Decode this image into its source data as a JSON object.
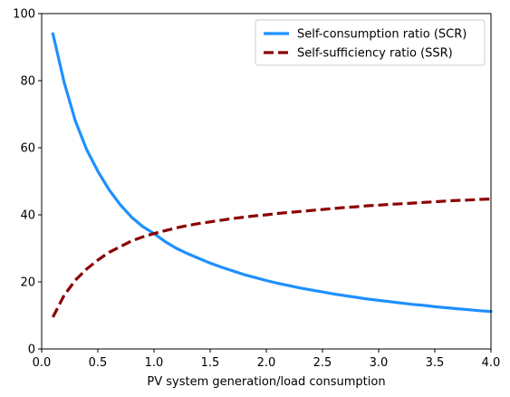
{
  "chart_data": {
    "type": "line",
    "title": "",
    "xlabel": "PV system generation/load consumption",
    "ylabel": "",
    "xlim": [
      0,
      4.0
    ],
    "ylim": [
      0,
      100
    ],
    "x_ticks": [
      "0.0",
      "0.5",
      "1.0",
      "1.5",
      "2.0",
      "2.5",
      "3.0",
      "3.5",
      "4.0"
    ],
    "y_ticks": [
      "0",
      "20",
      "40",
      "60",
      "80",
      "100"
    ],
    "grid": false,
    "legend_position": "top-right",
    "series": [
      {
        "name": "Self-consumption ratio (SCR)",
        "color": "#1E90FF",
        "style": "solid",
        "x": [
          0.1,
          0.2,
          0.3,
          0.4,
          0.5,
          0.6,
          0.7,
          0.8,
          0.9,
          1.0,
          1.1,
          1.2,
          1.3,
          1.4,
          1.5,
          1.6,
          1.7,
          1.8,
          1.9,
          2.0,
          2.1,
          2.2,
          2.3,
          2.4,
          2.5,
          2.6,
          2.7,
          2.8,
          2.9,
          3.0,
          3.1,
          3.2,
          3.3,
          3.4,
          3.5,
          3.6,
          3.7,
          3.8,
          3.9,
          4.0
        ],
        "y": [
          94,
          79.5,
          68,
          59.5,
          53,
          47.5,
          43,
          39.3,
          36.5,
          34.4,
          32,
          30,
          28.4,
          27,
          25.6,
          24.4,
          23.3,
          22.2,
          21.3,
          20.4,
          19.6,
          18.9,
          18.2,
          17.6,
          17.0,
          16.4,
          15.9,
          15.4,
          14.9,
          14.5,
          14.1,
          13.7,
          13.3,
          13.0,
          12.6,
          12.3,
          12.0,
          11.7,
          11.4,
          11.2
        ]
      },
      {
        "name": "Self-sufficiency ratio (SSR)",
        "color": "#8B0000",
        "style": "dashed",
        "x": [
          0.1,
          0.2,
          0.3,
          0.4,
          0.5,
          0.6,
          0.7,
          0.8,
          0.9,
          1.0,
          1.1,
          1.2,
          1.3,
          1.4,
          1.5,
          1.6,
          1.7,
          1.8,
          1.9,
          2.0,
          2.1,
          2.2,
          2.3,
          2.4,
          2.5,
          2.6,
          2.7,
          2.8,
          2.9,
          3.0,
          3.1,
          3.2,
          3.3,
          3.4,
          3.5,
          3.6,
          3.7,
          3.8,
          3.9,
          4.0
        ],
        "y": [
          9.5,
          16,
          20.5,
          23.8,
          26.5,
          28.8,
          30.5,
          32.2,
          33.4,
          34.4,
          35.3,
          36.1,
          36.8,
          37.4,
          37.9,
          38.4,
          38.9,
          39.3,
          39.7,
          40.0,
          40.4,
          40.7,
          41.0,
          41.3,
          41.6,
          41.9,
          42.2,
          42.4,
          42.7,
          42.9,
          43.1,
          43.3,
          43.5,
          43.7,
          43.9,
          44.1,
          44.3,
          44.4,
          44.6,
          44.7
        ]
      }
    ]
  }
}
